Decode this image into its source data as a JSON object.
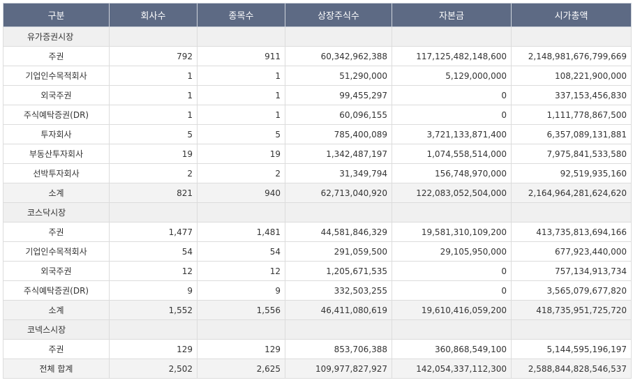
{
  "headers": [
    "구분",
    "회사수",
    "종목수",
    "상장주식수",
    "자본금",
    "시가총액"
  ],
  "rows": [
    {
      "type": "section",
      "name": "유가증권시장"
    },
    {
      "type": "row",
      "name": "주권",
      "cells": [
        "792",
        "911",
        "60,342,962,388",
        "117,125,482,148,600",
        "2,148,981,676,799,669"
      ]
    },
    {
      "type": "row",
      "name": "기업인수목적회사",
      "cells": [
        "1",
        "1",
        "51,290,000",
        "5,129,000,000",
        "108,221,900,000"
      ]
    },
    {
      "type": "row",
      "name": "외국주권",
      "cells": [
        "1",
        "1",
        "99,455,297",
        "0",
        "337,153,456,830"
      ]
    },
    {
      "type": "row",
      "name": "주식예탁증권(DR)",
      "cells": [
        "1",
        "1",
        "60,096,155",
        "0",
        "1,111,778,867,500"
      ]
    },
    {
      "type": "row",
      "name": "투자회사",
      "cells": [
        "5",
        "5",
        "785,400,089",
        "3,721,133,871,400",
        "6,357,089,131,881"
      ]
    },
    {
      "type": "row",
      "name": "부동산투자회사",
      "cells": [
        "19",
        "19",
        "1,342,487,197",
        "1,074,558,514,000",
        "7,975,841,533,580"
      ]
    },
    {
      "type": "row",
      "name": "선박투자회사",
      "cells": [
        "2",
        "2",
        "31,349,794",
        "156,748,970,000",
        "92,519,935,160"
      ]
    },
    {
      "type": "subtotal",
      "name": "소계",
      "cells": [
        "821",
        "940",
        "62,713,040,920",
        "122,083,052,504,000",
        "2,164,964,281,624,620"
      ]
    },
    {
      "type": "section",
      "name": "코스닥시장"
    },
    {
      "type": "row",
      "name": "주권",
      "cells": [
        "1,477",
        "1,481",
        "44,581,846,329",
        "19,581,310,109,200",
        "413,735,813,694,166"
      ]
    },
    {
      "type": "row",
      "name": "기업인수목적회사",
      "cells": [
        "54",
        "54",
        "291,059,500",
        "29,105,950,000",
        "677,923,440,000"
      ]
    },
    {
      "type": "row",
      "name": "외국주권",
      "cells": [
        "12",
        "12",
        "1,205,671,535",
        "0",
        "757,134,913,734"
      ]
    },
    {
      "type": "row",
      "name": "주식예탁증권(DR)",
      "cells": [
        "9",
        "9",
        "332,503,255",
        "0",
        "3,565,079,677,820"
      ]
    },
    {
      "type": "subtotal",
      "name": "소계",
      "cells": [
        "1,552",
        "1,556",
        "46,411,080,619",
        "19,610,416,059,200",
        "418,735,951,725,720"
      ]
    },
    {
      "type": "section",
      "name": "코넥스시장"
    },
    {
      "type": "row",
      "name": "주권",
      "cells": [
        "129",
        "129",
        "853,706,388",
        "360,868,549,100",
        "5,144,595,196,197"
      ]
    },
    {
      "type": "subtotal",
      "name": "전체 합계",
      "cells": [
        "2,502",
        "2,625",
        "109,977,827,927",
        "142,054,337,112,300",
        "2,588,844,828,546,537"
      ]
    }
  ]
}
